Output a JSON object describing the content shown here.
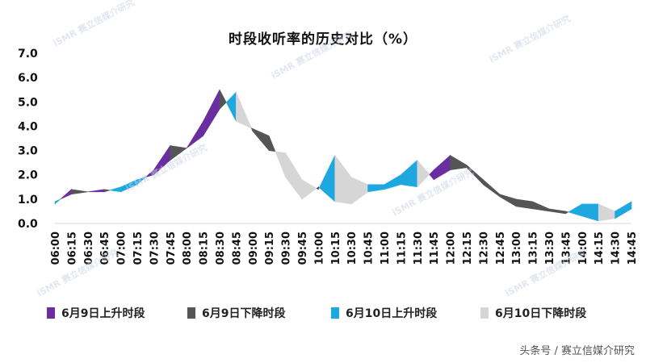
{
  "page": {
    "credit": "头条号 / 赛立信媒介研究",
    "watermark": "赛立信媒介研究"
  },
  "chart_data": {
    "type": "area",
    "title": "时段收听率的历史对比（%）",
    "xlabel": "",
    "ylabel": "",
    "ylim": [
      0,
      7
    ],
    "yticks": [
      "0.0",
      "1.0",
      "2.0",
      "3.0",
      "4.0",
      "5.0",
      "6.0",
      "7.0"
    ],
    "grid": false,
    "legend_position": "bottom",
    "x": [
      "06:00",
      "06:15",
      "06:30",
      "06:45",
      "07:00",
      "07:15",
      "07:30",
      "07:45",
      "08:00",
      "08:15",
      "08:30",
      "08:45",
      "09:00",
      "09:15",
      "09:30",
      "09:45",
      "10:00",
      "10:15",
      "10:30",
      "10:45",
      "11:00",
      "11:15",
      "11:30",
      "11:45",
      "12:00",
      "12:15",
      "12:30",
      "12:45",
      "13:00",
      "13:15",
      "13:30",
      "13:45",
      "14:00",
      "14:15",
      "14:30",
      "14:45"
    ],
    "series": [
      {
        "name": "6月9日",
        "color": "#6a2ea0",
        "values": [
          0.8,
          1.4,
          1.3,
          1.4,
          1.3,
          1.6,
          2.2,
          3.2,
          3.1,
          4.2,
          5.5,
          4.2,
          3.9,
          3.6,
          1.9,
          1.0,
          1.5,
          0.9,
          0.8,
          1.3,
          1.4,
          1.6,
          1.5,
          2.2,
          2.8,
          2.4,
          1.8,
          1.2,
          1.0,
          0.9,
          0.6,
          0.5,
          0.3,
          0.1,
          0.2,
          0.6
        ]
      },
      {
        "name": "6月10日",
        "color": "#1fa8e0",
        "values": [
          0.9,
          1.2,
          1.3,
          1.3,
          1.5,
          1.8,
          2.0,
          2.6,
          3.1,
          3.6,
          4.7,
          5.4,
          3.8,
          3.0,
          2.9,
          1.8,
          1.4,
          2.8,
          1.9,
          1.6,
          1.6,
          2.0,
          2.6,
          1.8,
          2.2,
          2.3,
          1.6,
          1.1,
          0.7,
          0.6,
          0.5,
          0.4,
          0.8,
          0.8,
          0.5,
          0.9
        ]
      }
    ],
    "legend": [
      {
        "label": "6月9日上升时段",
        "color": "#6a2ea0"
      },
      {
        "label": "6月9日下降时段",
        "color": "#555555"
      },
      {
        "label": "6月10日上升时段",
        "color": "#1fa8e0"
      },
      {
        "label": "6月10日下降时段",
        "color": "#d6d6d6"
      }
    ],
    "fill_colors": {
      "day9_up": "#6a2ea0",
      "day9_down": "#555555",
      "day10_up": "#1fa8e0",
      "day10_down": "#d6d6d6"
    }
  }
}
